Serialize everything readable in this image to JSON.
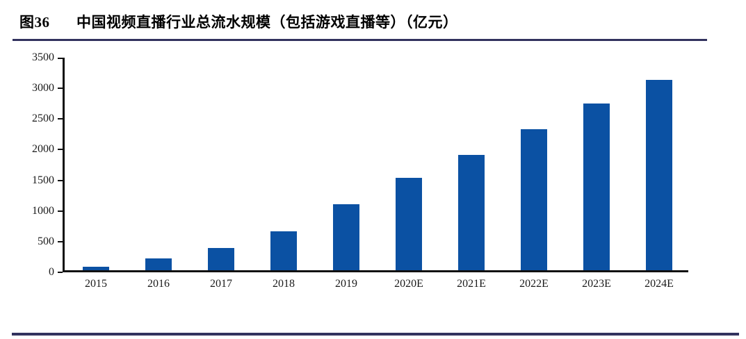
{
  "figure": {
    "label": "图36",
    "title": "中国视频直播行业总流水规模（包括游戏直播等）（亿元）"
  },
  "colors": {
    "bar": "#0B51A3",
    "rule": "#32325E",
    "axis": "#111111",
    "text": "#1A1A1A"
  },
  "chart_data": {
    "type": "bar",
    "title": "中国视频直播行业总流水规模（包括游戏直播等）（亿元）",
    "figure_label": "图36",
    "categories": [
      "2015",
      "2016",
      "2017",
      "2018",
      "2019",
      "2020E",
      "2021E",
      "2022E",
      "2023E",
      "2024E"
    ],
    "values": [
      55,
      190,
      360,
      640,
      1080,
      1510,
      1880,
      2300,
      2720,
      3100
    ],
    "xlabel": "",
    "ylabel": "",
    "ylim": [
      0,
      3500
    ],
    "yticks": [
      0,
      500,
      1000,
      1500,
      2000,
      2500,
      3000,
      3500
    ],
    "grid": false,
    "legend": "none",
    "bar_color": "#0B51A3"
  }
}
